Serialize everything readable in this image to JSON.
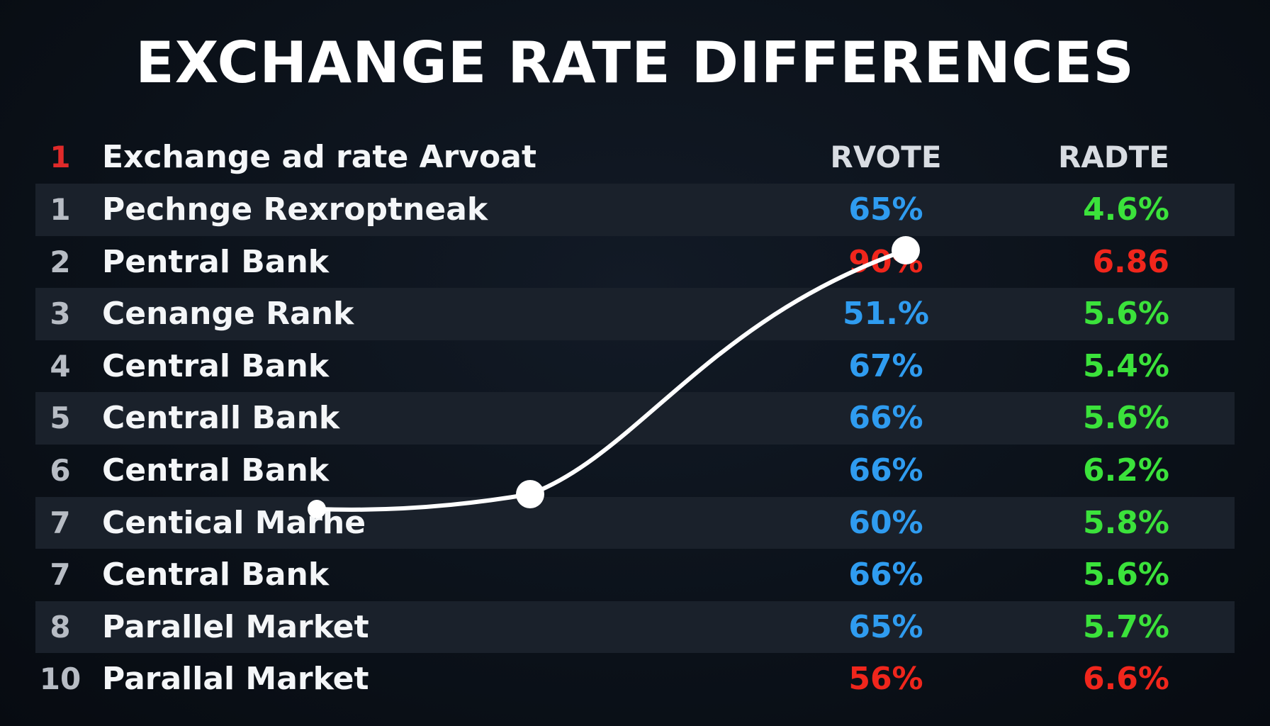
{
  "title": "EXCHANGE RATE DIFFERENCES",
  "header": {
    "num": "1",
    "name": "Exchange ad rate Arvoat",
    "col1": "RVOTE",
    "col2": "RADTE"
  },
  "rows": [
    {
      "num": "1",
      "name": "Pechnge Rexroptneak",
      "v1": "65%",
      "v1_color": "blue",
      "v2": "4.6%",
      "v2_color": "green"
    },
    {
      "num": "2",
      "name": "Pentral Bank",
      "v1": "90%",
      "v1_color": "red",
      "v2": "6.86",
      "v2_color": "red"
    },
    {
      "num": "3",
      "name": "Cenange Rank",
      "v1": "51.%",
      "v1_color": "blue",
      "v2": "5.6%",
      "v2_color": "green"
    },
    {
      "num": "4",
      "name": "Central Bank",
      "v1": "67%",
      "v1_color": "blue",
      "v2": "5.4%",
      "v2_color": "green"
    },
    {
      "num": "5",
      "name": "Centrall Bank",
      "v1": "66%",
      "v1_color": "blue",
      "v2": "5.6%",
      "v2_color": "green"
    },
    {
      "num": "6",
      "name": "Central Bank",
      "v1": "66%",
      "v1_color": "blue",
      "v2": "6.2%",
      "v2_color": "green"
    },
    {
      "num": "7",
      "name": "Centical Marhe",
      "v1": "60%",
      "v1_color": "blue",
      "v2": "5.8%",
      "v2_color": "green"
    },
    {
      "num": "7",
      "name": "Central Bank",
      "v1": "66%",
      "v1_color": "blue",
      "v2": "5.6%",
      "v2_color": "green"
    },
    {
      "num": "8",
      "name": "Parallel Market",
      "v1": "65%",
      "v1_color": "blue",
      "v2": "5.7%",
      "v2_color": "green"
    },
    {
      "num": "10",
      "name": "Parallal Market",
      "v1": "56%",
      "v1_color": "red",
      "v2": "6.6%",
      "v2_color": "red"
    }
  ],
  "colors": {
    "blue": "#2f9cf0",
    "red": "#f0261c",
    "green": "#3be23b",
    "line": "#ffffff"
  },
  "chart_data": {
    "type": "table",
    "title": "EXCHANGE RATE DIFFERENCES",
    "columns": [
      "Exchange ad rate Arvoat",
      "RVOTE",
      "RADTE"
    ],
    "overlay_line": {
      "type": "line",
      "markers": 3
    }
  }
}
